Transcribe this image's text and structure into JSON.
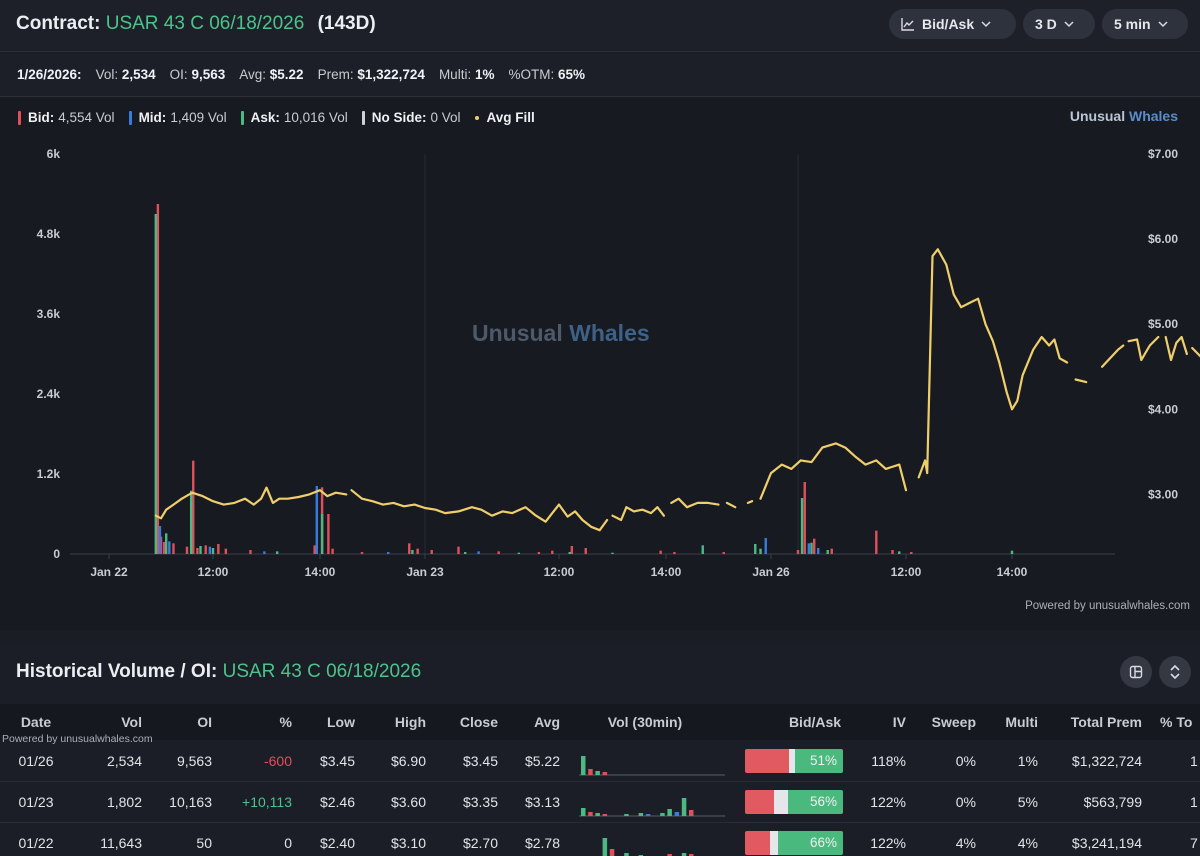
{
  "header": {
    "label": "Contract:",
    "contract": "USAR 43 C 06/18/2026",
    "days": "(143D)",
    "controls": [
      {
        "label": "Bid/Ask",
        "icon": "line-chart-icon"
      },
      {
        "label": "3 D"
      },
      {
        "label": "5 min"
      }
    ]
  },
  "info": {
    "date": "1/26/2026:",
    "vol_label": "Vol:",
    "vol": "2,534",
    "oi_label": "OI:",
    "oi": "9,563",
    "avg_label": "Avg:",
    "avg": "$5.22",
    "prem_label": "Prem:",
    "prem": "$1,322,724",
    "multi_label": "Multi:",
    "multi": "1%",
    "otm_label": "%OTM:",
    "otm": "65%"
  },
  "legend": {
    "bid_label": "Bid:",
    "bid": "4,554 Vol",
    "mid_label": "Mid:",
    "mid": "1,409 Vol",
    "ask_label": "Ask:",
    "ask": "10,016 Vol",
    "noside_label": "No Side:",
    "noside": "0 Vol",
    "avgfill_label": "Avg Fill"
  },
  "brand": {
    "part1": "Unusual",
    "part2": "Whales"
  },
  "watermark": {
    "part1": "Unusual",
    "part2": "Whales"
  },
  "powered_by": "Powered by unusualwhales.com",
  "colors": {
    "bid": "#e0505a",
    "mid": "#3a7be0",
    "ask": "#4cb884",
    "noside": "#cfd2d8",
    "avg": "#f0cf6b",
    "green": "#4cc38a"
  },
  "chart_data": {
    "type": "bar+line",
    "x_ticks": [
      "Jan 22",
      "12:00",
      "14:00",
      "Jan 23",
      "12:00",
      "14:00",
      "Jan 26",
      "12:00",
      "14:00"
    ],
    "y_left": {
      "ticks": [
        "0",
        "1.2k",
        "2.4k",
        "3.6k",
        "4.8k",
        "6k"
      ],
      "range": [
        0,
        6000
      ]
    },
    "y_right": {
      "ticks": [
        "$3.00",
        "$4.00",
        "$5.00",
        "$6.00",
        "$7.00"
      ],
      "range": [
        2.3,
        7.0
      ]
    },
    "session_breaks": [
      3.0,
      6.2
    ],
    "series": [
      {
        "name": "Bid",
        "color": "#e0505a",
        "bars": [
          [
            0.47,
            5250
          ],
          [
            0.5,
            260
          ],
          [
            0.53,
            180
          ],
          [
            0.62,
            160
          ],
          [
            0.75,
            110
          ],
          [
            0.81,
            1400
          ],
          [
            0.85,
            90
          ],
          [
            0.93,
            130
          ],
          [
            1.05,
            150
          ],
          [
            1.12,
            80
          ],
          [
            1.35,
            60
          ],
          [
            1.95,
            130
          ],
          [
            2.02,
            1000
          ],
          [
            2.08,
            600
          ],
          [
            2.12,
            80
          ],
          [
            2.4,
            30
          ],
          [
            2.85,
            160
          ],
          [
            2.93,
            80
          ],
          [
            3.05,
            60
          ],
          [
            3.25,
            110
          ],
          [
            3.55,
            40
          ],
          [
            3.85,
            30
          ],
          [
            3.95,
            50
          ],
          [
            4.12,
            120
          ],
          [
            4.25,
            90
          ],
          [
            4.95,
            50
          ],
          [
            5.08,
            30
          ],
          [
            5.55,
            30
          ],
          [
            6.2,
            60
          ],
          [
            6.25,
            1080
          ],
          [
            6.32,
            230
          ],
          [
            6.45,
            80
          ],
          [
            6.78,
            350
          ],
          [
            6.9,
            60
          ],
          [
            7.05,
            30
          ]
        ]
      },
      {
        "name": "Mid",
        "color": "#3a7be0",
        "bars": [
          [
            0.49,
            420
          ],
          [
            0.58,
            190
          ],
          [
            0.97,
            110
          ],
          [
            1.48,
            40
          ],
          [
            1.97,
            1020
          ],
          [
            2.65,
            30
          ],
          [
            3.4,
            40
          ],
          [
            5.95,
            240
          ],
          [
            6.28,
            160
          ],
          [
            6.35,
            90
          ]
        ]
      },
      {
        "name": "Ask",
        "color": "#4cb884",
        "bars": [
          [
            0.45,
            5100
          ],
          [
            0.55,
            310
          ],
          [
            0.79,
            950
          ],
          [
            0.88,
            120
          ],
          [
            1.0,
            90
          ],
          [
            1.6,
            40
          ],
          [
            2.02,
            600
          ],
          [
            2.88,
            60
          ],
          [
            3.3,
            30
          ],
          [
            3.7,
            20
          ],
          [
            4.1,
            30
          ],
          [
            4.5,
            20
          ],
          [
            5.35,
            130
          ],
          [
            5.85,
            150
          ],
          [
            5.9,
            80
          ],
          [
            6.23,
            840
          ],
          [
            6.3,
            170
          ],
          [
            6.42,
            60
          ],
          [
            6.95,
            40
          ],
          [
            8.0,
            50
          ]
        ]
      }
    ],
    "avg_fill_line": [
      [
        [
          0.45,
          2.75
        ],
        [
          0.5,
          2.72
        ],
        [
          0.55,
          2.82
        ],
        [
          0.62,
          2.88
        ],
        [
          0.7,
          2.95
        ],
        [
          0.8,
          3.02
        ],
        [
          0.9,
          2.98
        ],
        [
          1.0,
          2.92
        ],
        [
          1.1,
          2.88
        ],
        [
          1.2,
          2.9
        ],
        [
          1.3,
          2.95
        ],
        [
          1.38,
          2.88
        ],
        [
          1.45,
          2.95
        ],
        [
          1.5,
          3.08
        ],
        [
          1.56,
          2.9
        ],
        [
          1.62,
          2.95
        ],
        [
          1.7,
          2.95
        ],
        [
          1.8,
          2.97
        ],
        [
          1.9,
          3.0
        ],
        [
          2.0,
          3.05
        ],
        [
          2.07,
          2.98
        ],
        [
          2.15,
          3.02
        ],
        [
          2.25,
          3.0
        ]
      ],
      [
        [
          2.3,
          3.05
        ],
        [
          2.4,
          2.95
        ],
        [
          2.5,
          2.92
        ],
        [
          2.6,
          2.88
        ],
        [
          2.7,
          2.9
        ],
        [
          2.8,
          2.86
        ],
        [
          2.9,
          2.88
        ],
        [
          3.0,
          2.84
        ],
        [
          3.08,
          2.82
        ],
        [
          3.15,
          2.78
        ],
        [
          3.25,
          2.8
        ],
        [
          3.35,
          2.85
        ],
        [
          3.42,
          2.82
        ],
        [
          3.5,
          2.75
        ],
        [
          3.58,
          2.8
        ],
        [
          3.65,
          2.78
        ],
        [
          3.75,
          2.85
        ],
        [
          3.82,
          2.76
        ],
        [
          3.9,
          2.68
        ],
        [
          3.95,
          2.78
        ],
        [
          4.0,
          2.88
        ],
        [
          4.08,
          2.74
        ],
        [
          4.15,
          2.8
        ],
        [
          4.22,
          2.7
        ],
        [
          4.3,
          2.62
        ],
        [
          4.38,
          2.58
        ],
        [
          4.45,
          2.7
        ]
      ],
      [
        [
          4.5,
          2.75
        ],
        [
          4.58,
          2.7
        ],
        [
          4.63,
          2.85
        ],
        [
          4.7,
          2.8
        ],
        [
          4.78,
          2.82
        ],
        [
          4.86,
          2.78
        ],
        [
          4.92,
          2.85
        ],
        [
          4.98,
          2.75
        ]
      ],
      [
        [
          5.05,
          2.9
        ],
        [
          5.12,
          2.95
        ],
        [
          5.2,
          2.85
        ],
        [
          5.3,
          2.9
        ],
        [
          5.4,
          2.9
        ],
        [
          5.5,
          2.88
        ]
      ],
      [
        [
          5.58,
          2.9
        ],
        [
          5.66,
          2.85
        ]
      ],
      [
        [
          5.78,
          2.9
        ],
        [
          5.82,
          2.92
        ]
      ],
      [
        [
          5.9,
          2.95
        ],
        [
          6.0,
          3.25
        ],
        [
          6.08,
          3.35
        ],
        [
          6.15,
          3.3
        ],
        [
          6.22,
          3.4
        ],
        [
          6.3,
          3.38
        ],
        [
          6.38,
          3.55
        ],
        [
          6.48,
          3.6
        ],
        [
          6.55,
          3.55
        ],
        [
          6.62,
          3.45
        ],
        [
          6.7,
          3.35
        ],
        [
          6.78,
          3.4
        ],
        [
          6.85,
          3.3
        ],
        [
          6.95,
          3.35
        ],
        [
          7.0,
          3.05
        ]
      ],
      [
        [
          7.12,
          3.2
        ],
        [
          7.18,
          3.4
        ],
        [
          7.2,
          3.25
        ],
        [
          7.25,
          5.8
        ],
        [
          7.3,
          5.88
        ],
        [
          7.38,
          5.7
        ],
        [
          7.45,
          5.35
        ],
        [
          7.52,
          5.2
        ],
        [
          7.6,
          5.25
        ],
        [
          7.68,
          5.3
        ],
        [
          7.75,
          5.0
        ],
        [
          7.82,
          4.8
        ],
        [
          7.88,
          4.55
        ],
        [
          7.95,
          4.2
        ],
        [
          8.0,
          4.0
        ],
        [
          8.05,
          4.1
        ],
        [
          8.1,
          4.4
        ],
        [
          8.2,
          4.7
        ],
        [
          8.28,
          4.85
        ],
        [
          8.35,
          4.75
        ],
        [
          8.4,
          4.82
        ],
        [
          8.45,
          4.6
        ],
        [
          8.52,
          4.55
        ]
      ],
      [
        [
          8.6,
          4.35
        ],
        [
          8.7,
          4.32
        ]
      ],
      [
        [
          8.85,
          4.5
        ],
        [
          9.0,
          4.7
        ],
        [
          9.05,
          4.75
        ]
      ],
      [
        [
          9.1,
          4.8
        ],
        [
          9.18,
          4.82
        ],
        [
          9.22,
          4.58
        ],
        [
          9.3,
          4.75
        ],
        [
          9.38,
          4.85
        ]
      ],
      [
        [
          9.45,
          4.85
        ],
        [
          9.5,
          4.58
        ],
        [
          9.55,
          4.78
        ],
        [
          9.6,
          4.85
        ],
        [
          9.65,
          4.65
        ]
      ],
      [
        [
          9.7,
          4.72
        ],
        [
          9.78,
          4.62
        ],
        [
          9.85,
          4.45
        ],
        [
          9.92,
          4.25
        ]
      ],
      [
        [
          9.98,
          4.5
        ]
      ],
      [
        [
          10.07,
          4.32
        ],
        [
          10.12,
          4.32
        ]
      ],
      [
        [
          10.18,
          4.1
        ]
      ],
      [
        [
          10.25,
          3.85
        ],
        [
          10.3,
          3.65
        ],
        [
          10.35,
          3.6
        ]
      ]
    ]
  },
  "history": {
    "title_label": "Historical Volume / OI:",
    "contract": "USAR 43 C 06/18/2026",
    "columns": [
      "Date",
      "Vol",
      "OI",
      "%",
      "Low",
      "High",
      "Close",
      "Avg",
      "Vol (30min)",
      "Bid/Ask",
      "IV",
      "Sweep",
      "Multi",
      "Total Prem",
      "% To"
    ],
    "rows": [
      {
        "date": "01/26",
        "vol": "2,534",
        "oi": "9,563",
        "chg": "-600",
        "chg_sign": "neg",
        "low": "$3.45",
        "high": "$6.90",
        "close": "$3.45",
        "avg": "$5.22",
        "bid_pct": 0.45,
        "mid_pct": 0.06,
        "ask_pct": 0.51,
        "ask_label": "51%",
        "iv": "118%",
        "sweep": "0%",
        "multi": "1%",
        "total_prem": "$1,322,724",
        "pct_to": "1",
        "spark": [
          {
            "h": 19,
            "c": "#4cb884"
          },
          {
            "h": 6,
            "c": "#e0505a"
          },
          {
            "h": 4,
            "c": "#4cb884"
          },
          {
            "h": 3,
            "c": "#e0505a"
          }
        ]
      },
      {
        "date": "01/23",
        "vol": "1,802",
        "oi": "10,163",
        "chg": "+10,113",
        "chg_sign": "pos",
        "low": "$2.46",
        "high": "$3.60",
        "close": "$3.35",
        "avg": "$3.13",
        "bid_pct": 0.3,
        "mid_pct": 0.14,
        "ask_pct": 0.56,
        "ask_label": "56%",
        "iv": "122%",
        "sweep": "0%",
        "multi": "5%",
        "total_prem": "$563,799",
        "pct_to": "1",
        "spark": [
          {
            "h": 8,
            "c": "#4cb884"
          },
          {
            "h": 4,
            "c": "#e0505a"
          },
          {
            "h": 3,
            "c": "#4cb884"
          },
          {
            "h": 2,
            "c": "#e0505a"
          },
          {
            "h": 0,
            "c": "#4cb884"
          },
          {
            "h": 0,
            "c": "#4cb884"
          },
          {
            "h": 2,
            "c": "#4cb884"
          },
          {
            "h": 0,
            "c": "#4cb884"
          },
          {
            "h": 3,
            "c": "#4cb884"
          },
          {
            "h": 2,
            "c": "#3a7be0"
          },
          {
            "h": 0,
            "c": "#4cb884"
          },
          {
            "h": 3,
            "c": "#4cb884"
          },
          {
            "h": 7,
            "c": "#4cb884"
          },
          {
            "h": 4,
            "c": "#3a7be0"
          },
          {
            "h": 18,
            "c": "#4cb884"
          },
          {
            "h": 6,
            "c": "#e0505a"
          }
        ]
      },
      {
        "date": "01/22",
        "vol": "11,643",
        "oi": "50",
        "chg": "0",
        "chg_sign": "none",
        "low": "$2.40",
        "high": "$3.10",
        "close": "$2.70",
        "avg": "$2.78",
        "bid_pct": 0.26,
        "mid_pct": 0.08,
        "ask_pct": 0.66,
        "ask_label": "66%",
        "iv": "122%",
        "sweep": "4%",
        "multi": "4%",
        "total_prem": "$3,241,194",
        "pct_to": "7",
        "spark": [
          {
            "h": 0,
            "c": "#4cb884"
          },
          {
            "h": 0,
            "c": "#4cb884"
          },
          {
            "h": 0,
            "c": "#4cb884"
          },
          {
            "h": 19,
            "c": "#4cb884"
          },
          {
            "h": 8,
            "c": "#e0505a"
          },
          {
            "h": 0,
            "c": "#4cb884"
          },
          {
            "h": 4,
            "c": "#4cb884"
          },
          {
            "h": 0,
            "c": "#4cb884"
          },
          {
            "h": 2,
            "c": "#4cb884"
          },
          {
            "h": 0,
            "c": "#4cb884"
          },
          {
            "h": 0,
            "c": "#4cb884"
          },
          {
            "h": 0,
            "c": "#4cb884"
          },
          {
            "h": 3,
            "c": "#e0505a"
          },
          {
            "h": 0,
            "c": "#4cb884"
          },
          {
            "h": 4,
            "c": "#4cb884"
          },
          {
            "h": 3,
            "c": "#e0505a"
          }
        ]
      }
    ]
  }
}
